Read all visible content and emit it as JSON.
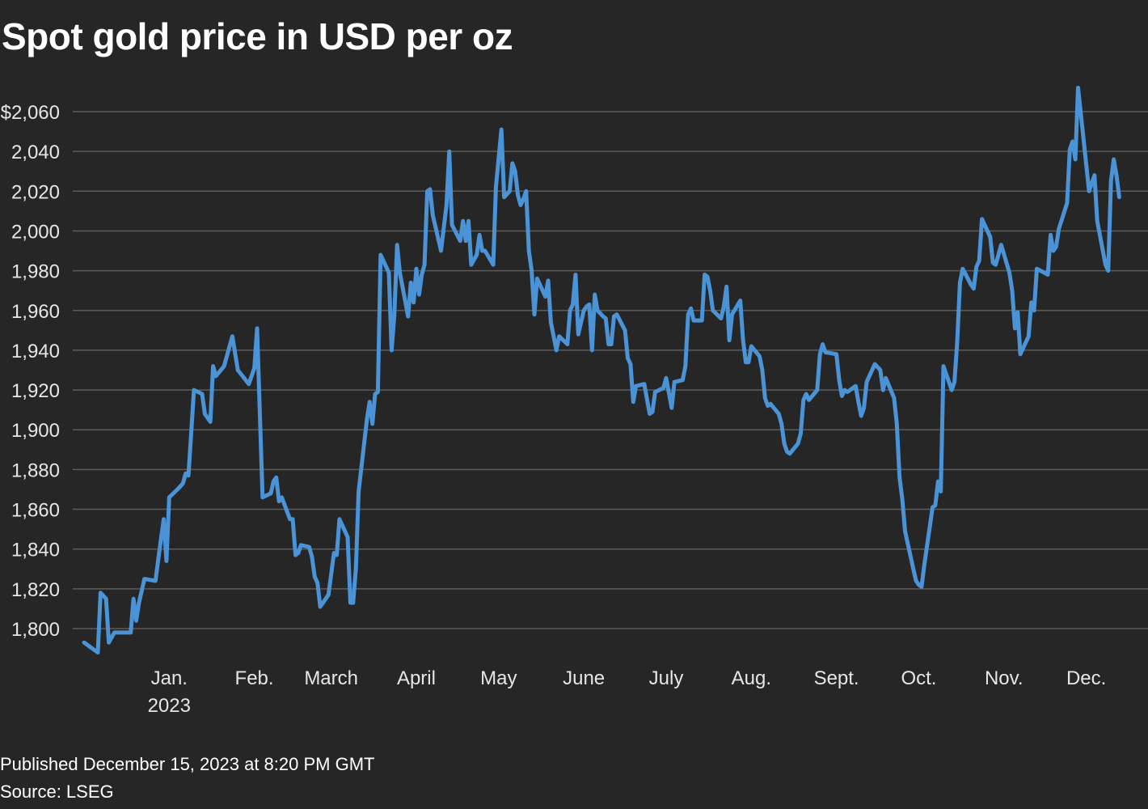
{
  "header": {
    "title": "Spot gold price in USD per oz"
  },
  "footer": {
    "published": "Published December 15, 2023 at 8:20 PM GMT",
    "source": "Source: LSEG"
  },
  "colors": {
    "background": "#262626",
    "line": "#4a93d6",
    "grid": "#5c5c5c",
    "text": "#e6e6e6"
  },
  "chart_data": {
    "type": "line",
    "title": "Spot gold price in USD per oz",
    "xlabel": "",
    "ylabel": "",
    "ylim": [
      1787,
      2073
    ],
    "grid": true,
    "y_ticks": [
      {
        "value": 1800,
        "label": "1,800"
      },
      {
        "value": 1820,
        "label": "1,820"
      },
      {
        "value": 1840,
        "label": "1,840"
      },
      {
        "value": 1860,
        "label": "1,860"
      },
      {
        "value": 1880,
        "label": "1,880"
      },
      {
        "value": 1900,
        "label": "1,900"
      },
      {
        "value": 1920,
        "label": "1,920"
      },
      {
        "value": 1940,
        "label": "1,940"
      },
      {
        "value": 1960,
        "label": "1,960"
      },
      {
        "value": 1980,
        "label": "1,980"
      },
      {
        "value": 2000,
        "label": "2,000"
      },
      {
        "value": 2020,
        "label": "2,020"
      },
      {
        "value": 2040,
        "label": "2,040"
      },
      {
        "value": 2060,
        "label": "$2,060"
      }
    ],
    "x_ticks": [
      {
        "value": 15,
        "label": "Jan.",
        "sublabel": "2023"
      },
      {
        "value": 46,
        "label": "Feb."
      },
      {
        "value": 74,
        "label": "March"
      },
      {
        "value": 105,
        "label": "April"
      },
      {
        "value": 135,
        "label": "May"
      },
      {
        "value": 166,
        "label": "June"
      },
      {
        "value": 196,
        "label": "July"
      },
      {
        "value": 227,
        "label": "Aug."
      },
      {
        "value": 258,
        "label": "Sept."
      },
      {
        "value": 288,
        "label": "Oct."
      },
      {
        "value": 319,
        "label": "Nov."
      },
      {
        "value": 349,
        "label": "Dec."
      }
    ],
    "xlim": [
      -16,
      365
    ],
    "series": [
      {
        "name": "Spot gold",
        "points": [
          [
            -16,
            1793
          ],
          [
            -13,
            1790
          ],
          [
            -11,
            1788
          ],
          [
            -10,
            1818
          ],
          [
            -8,
            1815
          ],
          [
            -7,
            1793
          ],
          [
            -5,
            1798
          ],
          [
            -4,
            1798
          ],
          [
            -2,
            1798
          ],
          [
            0,
            1798
          ],
          [
            1,
            1798
          ],
          [
            2,
            1815
          ],
          [
            3,
            1804
          ],
          [
            4,
            1813
          ],
          [
            6,
            1825
          ],
          [
            10,
            1824
          ],
          [
            12,
            1845
          ],
          [
            13,
            1855
          ],
          [
            14,
            1834
          ],
          [
            15,
            1866
          ],
          [
            18,
            1870
          ],
          [
            20,
            1873
          ],
          [
            21,
            1878
          ],
          [
            22,
            1877
          ],
          [
            24,
            1920
          ],
          [
            27,
            1918
          ],
          [
            28,
            1908
          ],
          [
            30,
            1904
          ],
          [
            31,
            1932
          ],
          [
            32,
            1927
          ],
          [
            35,
            1932
          ],
          [
            36,
            1937
          ],
          [
            38,
            1947
          ],
          [
            40,
            1930
          ],
          [
            44,
            1923
          ],
          [
            46,
            1931
          ],
          [
            47,
            1951
          ],
          [
            49,
            1866
          ],
          [
            52,
            1868
          ],
          [
            53,
            1874
          ],
          [
            54,
            1876
          ],
          [
            55,
            1864
          ],
          [
            56,
            1866
          ],
          [
            59,
            1855
          ],
          [
            60,
            1855
          ],
          [
            61,
            1837
          ],
          [
            62,
            1838
          ],
          [
            63,
            1842
          ],
          [
            66,
            1841
          ],
          [
            67,
            1836
          ],
          [
            68,
            1826
          ],
          [
            69,
            1823
          ],
          [
            70,
            1811
          ],
          [
            73,
            1817
          ],
          [
            75,
            1838
          ],
          [
            76,
            1837
          ],
          [
            77,
            1855
          ],
          [
            79,
            1849
          ],
          [
            80,
            1846
          ],
          [
            81,
            1813
          ],
          [
            82,
            1813
          ],
          [
            83,
            1830
          ],
          [
            84,
            1869
          ],
          [
            87,
            1905
          ],
          [
            88,
            1914
          ],
          [
            89,
            1903
          ],
          [
            90,
            1918
          ],
          [
            91,
            1919
          ],
          [
            92,
            1988
          ],
          [
            95,
            1979
          ],
          [
            96,
            1940
          ],
          [
            97,
            1958
          ],
          [
            98,
            1993
          ],
          [
            99,
            1979
          ],
          [
            102,
            1957
          ],
          [
            103,
            1974
          ],
          [
            104,
            1964
          ],
          [
            105,
            1981
          ],
          [
            106,
            1968
          ],
          [
            107,
            1978
          ],
          [
            108,
            1983
          ],
          [
            109,
            2020
          ],
          [
            110,
            2021
          ],
          [
            111,
            2008
          ],
          [
            114,
            1990
          ],
          [
            116,
            2013
          ],
          [
            117,
            2040
          ],
          [
            118,
            2003
          ],
          [
            121,
            1995
          ],
          [
            122,
            2005
          ],
          [
            123,
            1995
          ],
          [
            124,
            2005
          ],
          [
            125,
            1983
          ],
          [
            127,
            1988
          ],
          [
            128,
            1998
          ],
          [
            129,
            1990
          ],
          [
            130,
            1990
          ],
          [
            133,
            1983
          ],
          [
            134,
            2022
          ],
          [
            136,
            2051
          ],
          [
            137,
            2017
          ],
          [
            139,
            2020
          ],
          [
            140,
            2034
          ],
          [
            141,
            2030
          ],
          [
            142,
            2018
          ],
          [
            143,
            2013
          ],
          [
            144,
            2016
          ],
          [
            145,
            2020
          ],
          [
            146,
            1990
          ],
          [
            147,
            1980
          ],
          [
            148,
            1958
          ],
          [
            149,
            1976
          ],
          [
            152,
            1967
          ],
          [
            153,
            1975
          ],
          [
            154,
            1954
          ],
          [
            156,
            1940
          ],
          [
            157,
            1947
          ],
          [
            160,
            1943
          ],
          [
            161,
            1960
          ],
          [
            162,
            1963
          ],
          [
            163,
            1978
          ],
          [
            164,
            1948
          ],
          [
            166,
            1960
          ],
          [
            167,
            1962
          ],
          [
            168,
            1963
          ],
          [
            169,
            1940
          ],
          [
            170,
            1968
          ],
          [
            171,
            1960
          ],
          [
            173,
            1957
          ],
          [
            174,
            1956
          ],
          [
            175,
            1943
          ],
          [
            176,
            1943
          ],
          [
            177,
            1957
          ],
          [
            178,
            1958
          ],
          [
            181,
            1950
          ],
          [
            182,
            1936
          ],
          [
            183,
            1933
          ],
          [
            184,
            1914
          ],
          [
            185,
            1922
          ],
          [
            188,
            1923
          ],
          [
            190,
            1908
          ],
          [
            191,
            1909
          ],
          [
            192,
            1919
          ],
          [
            195,
            1921
          ],
          [
            196,
            1926
          ],
          [
            198,
            1911
          ],
          [
            199,
            1924
          ],
          [
            202,
            1925
          ],
          [
            203,
            1932
          ],
          [
            204,
            1958
          ],
          [
            205,
            1961
          ],
          [
            206,
            1955
          ],
          [
            209,
            1955
          ],
          [
            210,
            1978
          ],
          [
            211,
            1977
          ],
          [
            212,
            1970
          ],
          [
            213,
            1960
          ],
          [
            216,
            1956
          ],
          [
            217,
            1962
          ],
          [
            218,
            1972
          ],
          [
            219,
            1945
          ],
          [
            220,
            1958
          ],
          [
            223,
            1965
          ],
          [
            224,
            1945
          ],
          [
            225,
            1934
          ],
          [
            226,
            1934
          ],
          [
            227,
            1942
          ],
          [
            230,
            1937
          ],
          [
            231,
            1930
          ],
          [
            232,
            1916
          ],
          [
            233,
            1912
          ],
          [
            234,
            1913
          ],
          [
            237,
            1908
          ],
          [
            238,
            1903
          ],
          [
            239,
            1893
          ],
          [
            240,
            1889
          ],
          [
            241,
            1888
          ],
          [
            244,
            1893
          ],
          [
            245,
            1898
          ],
          [
            246,
            1915
          ],
          [
            247,
            1918
          ],
          [
            248,
            1915
          ],
          [
            251,
            1920
          ],
          [
            252,
            1938
          ],
          [
            253,
            1943
          ],
          [
            254,
            1939
          ],
          [
            258,
            1938
          ],
          [
            259,
            1925
          ],
          [
            260,
            1917
          ],
          [
            261,
            1920
          ],
          [
            262,
            1919
          ],
          [
            265,
            1922
          ],
          [
            266,
            1914
          ],
          [
            267,
            1907
          ],
          [
            268,
            1911
          ],
          [
            269,
            1924
          ],
          [
            272,
            1933
          ],
          [
            274,
            1930
          ],
          [
            275,
            1920
          ],
          [
            276,
            1926
          ],
          [
            279,
            1916
          ],
          [
            280,
            1903
          ],
          [
            281,
            1876
          ],
          [
            282,
            1865
          ],
          [
            283,
            1849
          ],
          [
            286,
            1830
          ],
          [
            287,
            1824
          ],
          [
            288,
            1822
          ],
          [
            289,
            1821
          ],
          [
            290,
            1832
          ],
          [
            293,
            1861
          ],
          [
            294,
            1862
          ],
          [
            295,
            1874
          ],
          [
            296,
            1869
          ],
          [
            297,
            1932
          ],
          [
            300,
            1920
          ],
          [
            301,
            1924
          ],
          [
            302,
            1944
          ],
          [
            303,
            1974
          ],
          [
            304,
            1981
          ],
          [
            307,
            1973
          ],
          [
            308,
            1971
          ],
          [
            309,
            1982
          ],
          [
            310,
            1985
          ],
          [
            311,
            2006
          ],
          [
            314,
            1997
          ],
          [
            315,
            1984
          ],
          [
            316,
            1983
          ],
          [
            317,
            1988
          ],
          [
            318,
            1993
          ],
          [
            321,
            1979
          ],
          [
            322,
            1970
          ],
          [
            323,
            1951
          ],
          [
            324,
            1959
          ],
          [
            325,
            1938
          ],
          [
            328,
            1947
          ],
          [
            329,
            1964
          ],
          [
            330,
            1960
          ],
          [
            331,
            1981
          ],
          [
            335,
            1978
          ],
          [
            336,
            1998
          ],
          [
            337,
            1990
          ],
          [
            338,
            1992
          ],
          [
            339,
            2001
          ],
          [
            342,
            2014
          ],
          [
            343,
            2041
          ],
          [
            344,
            2045
          ],
          [
            345,
            2036
          ],
          [
            346,
            2072
          ],
          [
            349,
            2033
          ],
          [
            350,
            2020
          ],
          [
            351,
            2024
          ],
          [
            352,
            2028
          ],
          [
            353,
            2005
          ],
          [
            356,
            1983
          ],
          [
            357,
            1980
          ],
          [
            358,
            2025
          ],
          [
            359,
            2036
          ],
          [
            360,
            2028
          ],
          [
            361,
            2017
          ]
        ]
      }
    ]
  }
}
